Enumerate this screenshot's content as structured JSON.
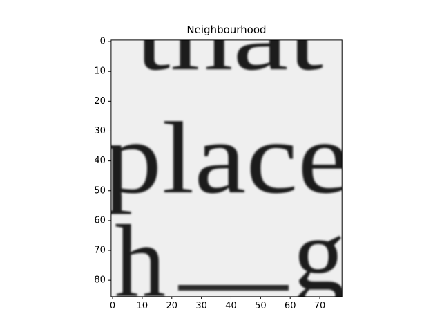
{
  "chart_data": {
    "type": "image",
    "title": "Neighbourhood",
    "image_text": [
      "that",
      "place",
      "h",
      "g"
    ],
    "xlim": [
      -0.5,
      77.5
    ],
    "ylim": [
      85.5,
      -0.5
    ],
    "xticks": [
      0,
      10,
      20,
      30,
      40,
      50,
      60,
      70
    ],
    "yticks": [
      0,
      10,
      20,
      30,
      40,
      50,
      60,
      70,
      80
    ]
  }
}
